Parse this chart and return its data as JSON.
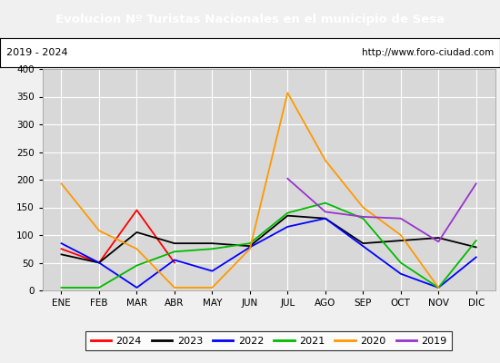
{
  "title": "Evolucion Nº Turistas Nacionales en el municipio de Sesa",
  "subtitle_left": "2019 - 2024",
  "subtitle_right": "http://www.foro-ciudad.com",
  "title_bgcolor": "#4472c4",
  "title_color": "#ffffff",
  "months": [
    "ENE",
    "FEB",
    "MAR",
    "ABR",
    "MAY",
    "JUN",
    "JUL",
    "AGO",
    "SEP",
    "OCT",
    "NOV",
    "DIC"
  ],
  "ylim": [
    0,
    400
  ],
  "yticks": [
    0,
    50,
    100,
    150,
    200,
    250,
    300,
    350,
    400
  ],
  "series": {
    "2024": {
      "color": "#ff0000",
      "values": [
        75,
        50,
        145,
        50,
        null,
        null,
        null,
        null,
        null,
        null,
        null,
        null
      ]
    },
    "2023": {
      "color": "#000000",
      "values": [
        65,
        50,
        105,
        85,
        85,
        80,
        135,
        130,
        85,
        90,
        95,
        78
      ]
    },
    "2022": {
      "color": "#0000ff",
      "values": [
        85,
        50,
        5,
        55,
        35,
        78,
        115,
        130,
        80,
        30,
        5,
        60
      ]
    },
    "2021": {
      "color": "#00bb00",
      "values": [
        5,
        5,
        45,
        70,
        75,
        85,
        140,
        158,
        130,
        50,
        5,
        90
      ]
    },
    "2020": {
      "color": "#ff9900",
      "values": [
        193,
        108,
        75,
        5,
        5,
        75,
        357,
        235,
        150,
        100,
        5,
        null
      ]
    },
    "2019": {
      "color": "#9933cc",
      "values": [
        null,
        null,
        null,
        null,
        null,
        null,
        202,
        142,
        133,
        130,
        88,
        193
      ]
    }
  },
  "legend_order": [
    "2024",
    "2023",
    "2022",
    "2021",
    "2020",
    "2019"
  ],
  "bg_color": "#f0f0f0",
  "plot_bg_color": "#d8d8d8",
  "grid_color": "#ffffff",
  "border_color": "#aaaaaa"
}
